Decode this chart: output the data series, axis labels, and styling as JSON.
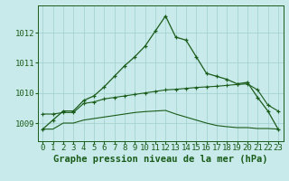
{
  "background_color": "#c8eaea",
  "grid_color": "#9ecece",
  "line_color": "#1a5c1a",
  "xlabel": "Graphe pression niveau de la mer (hPa)",
  "xlabel_fontsize": 7.5,
  "tick_fontsize": 6.5,
  "ylim": [
    1008.4,
    1012.9
  ],
  "yticks": [
    1009,
    1010,
    1011,
    1012
  ],
  "xticks": [
    0,
    1,
    2,
    3,
    4,
    5,
    6,
    7,
    8,
    9,
    10,
    11,
    12,
    13,
    14,
    15,
    16,
    17,
    18,
    19,
    20,
    21,
    22,
    23
  ],
  "hours": [
    0,
    1,
    2,
    3,
    4,
    5,
    6,
    7,
    8,
    9,
    10,
    11,
    12,
    13,
    14,
    15,
    16,
    17,
    18,
    19,
    20,
    21,
    22,
    23
  ],
  "line_main": [
    1008.8,
    1009.1,
    1009.4,
    1009.4,
    1009.75,
    1009.9,
    1010.2,
    1010.55,
    1010.9,
    1011.2,
    1011.55,
    1012.05,
    1012.55,
    1011.85,
    1011.75,
    1011.2,
    1010.65,
    1010.55,
    1010.45,
    1010.3,
    1010.35,
    1009.85,
    1009.4,
    1008.8
  ],
  "line_mid": [
    1009.3,
    1009.3,
    1009.35,
    1009.35,
    1009.65,
    1009.7,
    1009.8,
    1009.85,
    1009.9,
    1009.95,
    1010.0,
    1010.05,
    1010.1,
    1010.12,
    1010.15,
    1010.18,
    1010.2,
    1010.22,
    1010.25,
    1010.28,
    1010.3,
    1010.1,
    1009.6,
    1009.4
  ],
  "line_low": [
    1008.8,
    1008.8,
    1009.0,
    1009.0,
    1009.1,
    1009.15,
    1009.2,
    1009.25,
    1009.3,
    1009.35,
    1009.38,
    1009.4,
    1009.42,
    1009.3,
    1009.2,
    1009.1,
    1009.0,
    1008.92,
    1008.88,
    1008.85,
    1008.85,
    1008.82,
    1008.82,
    1008.8
  ]
}
